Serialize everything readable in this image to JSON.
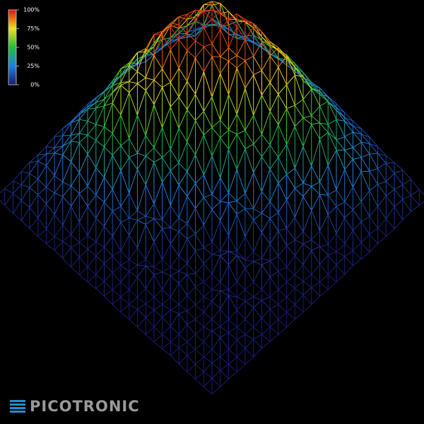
{
  "colorbar": {
    "lim": [
      0,
      100
    ],
    "ticks": [
      {
        "value": 100,
        "label": "100%"
      },
      {
        "value": 75,
        "label": "75%"
      },
      {
        "value": 50,
        "label": "50%"
      },
      {
        "value": 25,
        "label": "25%"
      },
      {
        "value": 0,
        "label": "0%"
      }
    ]
  },
  "logo": {
    "text": "PICOTRONIC"
  }
}
